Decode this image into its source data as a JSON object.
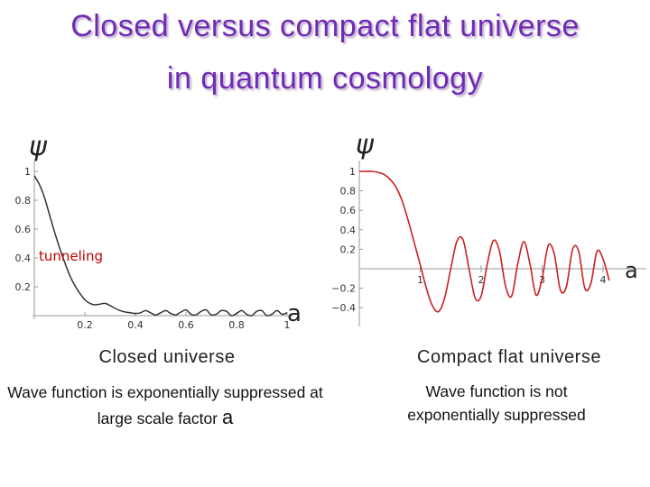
{
  "title": {
    "line1": "Closed versus compact flat universe",
    "line2": "in quantum cosmology"
  },
  "chart_data": [
    {
      "type": "line",
      "ylabel": "ψ",
      "xlabel": "a",
      "xlim": [
        0,
        1.0
      ],
      "ylim": [
        0,
        1.1
      ],
      "xticks": [
        "0.2",
        "0.4",
        "0.6",
        "0.8",
        "1"
      ],
      "yticks": [
        "0.2",
        "0.4",
        "0.6",
        "0.8",
        "1"
      ],
      "annotation": "tunneling",
      "annotation_color": "#c00000",
      "line_color": "#333333",
      "series": [
        {
          "x": [
            0.0,
            0.02,
            0.04,
            0.06,
            0.08,
            0.1,
            0.12,
            0.14,
            0.16,
            0.18,
            0.2,
            0.22,
            0.24,
            0.26,
            0.28,
            0.3,
            0.32,
            0.34,
            0.36,
            0.38,
            0.4,
            0.42,
            0.44,
            0.46,
            0.48,
            0.5,
            0.52,
            0.54,
            0.56,
            0.58,
            0.6,
            0.62,
            0.64,
            0.66,
            0.68,
            0.7,
            0.72,
            0.74,
            0.76,
            0.78,
            0.8,
            0.82,
            0.84,
            0.86,
            0.88,
            0.9,
            0.92,
            0.94,
            0.96,
            0.98,
            1.0
          ],
          "values": [
            0.97,
            0.91,
            0.82,
            0.7,
            0.58,
            0.47,
            0.37,
            0.28,
            0.21,
            0.155,
            0.11,
            0.085,
            0.075,
            0.08,
            0.085,
            0.07,
            0.05,
            0.035,
            0.025,
            0.02,
            0.015,
            0.02,
            0.035,
            0.02,
            0.005,
            0.02,
            0.035,
            0.015,
            0.005,
            0.025,
            0.04,
            0.01,
            0.005,
            0.03,
            0.04,
            0.005,
            0.01,
            0.035,
            0.03,
            0.0,
            0.015,
            0.035,
            0.01,
            0.0,
            0.03,
            0.035,
            0.0,
            0.01,
            0.035,
            0.01,
            0.02
          ]
        }
      ]
    },
    {
      "type": "line",
      "ylabel": "ψ",
      "xlabel": "a",
      "xlim": [
        0,
        4.2
      ],
      "ylim": [
        -0.48,
        1.1
      ],
      "xticks": [
        "1",
        "2",
        "3",
        "4"
      ],
      "yticks": [
        "−0.4",
        "−0.2",
        "0.2",
        "0.4",
        "0.6",
        "0.8",
        "1"
      ],
      "line_color": "#cc1f1f",
      "series": [
        {
          "x": [
            0.0,
            0.1,
            0.2,
            0.3,
            0.4,
            0.5,
            0.6,
            0.7,
            0.8,
            0.9,
            1.0,
            1.1,
            1.2,
            1.3,
            1.4,
            1.5,
            1.6,
            1.7,
            1.8,
            1.9,
            2.0,
            2.1,
            2.2,
            2.3,
            2.4,
            2.5,
            2.6,
            2.7,
            2.8,
            2.9,
            3.0,
            3.1,
            3.2,
            3.3,
            3.4,
            3.5,
            3.6,
            3.7,
            3.8,
            3.9,
            4.0,
            4.1
          ],
          "values": [
            1.0,
            1.0,
            1.0,
            0.99,
            0.97,
            0.92,
            0.84,
            0.7,
            0.5,
            0.27,
            0.04,
            -0.2,
            -0.38,
            -0.44,
            -0.3,
            0.0,
            0.28,
            0.3,
            0.0,
            -0.3,
            -0.28,
            0.05,
            0.29,
            0.18,
            -0.18,
            -0.28,
            0.05,
            0.28,
            0.05,
            -0.27,
            -0.1,
            0.24,
            0.15,
            -0.22,
            -0.18,
            0.2,
            0.18,
            -0.2,
            -0.15,
            0.18,
            0.1,
            -0.12
          ]
        }
      ]
    }
  ],
  "captions": {
    "left": "Closed universe",
    "right": "Compact flat universe"
  },
  "notes": {
    "left_text": "Wave function is exponentially suppressed at large scale factor",
    "left_symbol": "a",
    "right_line1": "Wave function is not",
    "right_line2": "exponentially suppressed"
  }
}
